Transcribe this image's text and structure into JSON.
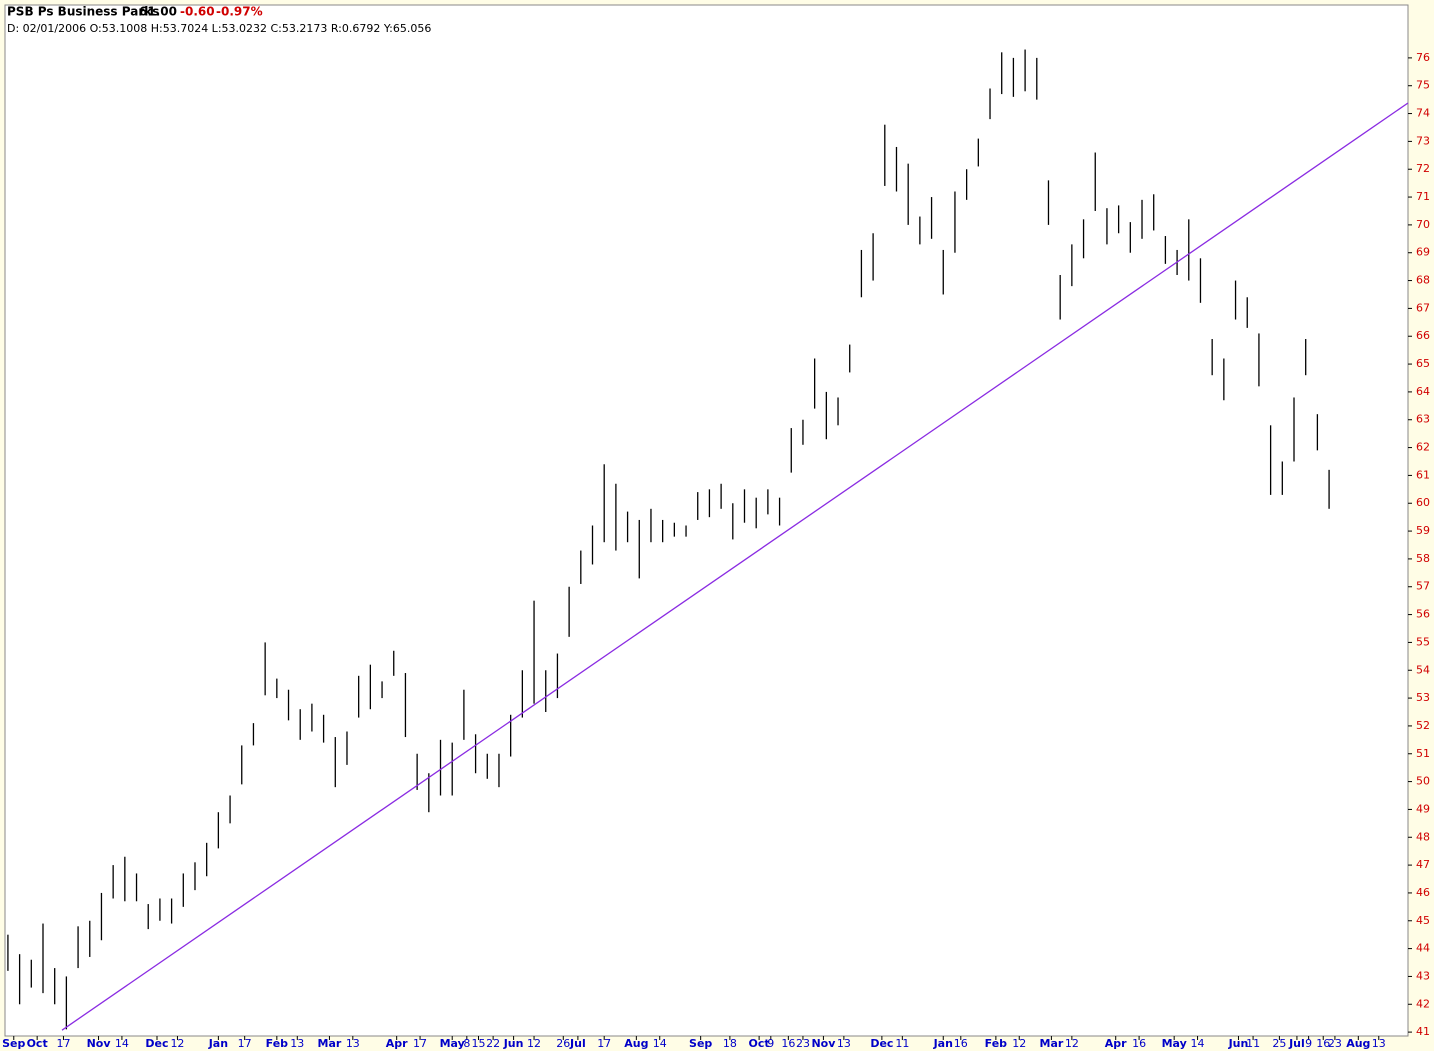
{
  "header": {
    "symbol": "PSB Ps Business Parks",
    "last": "61.00",
    "change": "-0.60",
    "change_pct": "-0.97%",
    "ohlc_line": "D: 02/01/2006 O:53.1008 H:53.7024 L:53.0232 C:53.2173 R:0.6792 Y:65.056"
  },
  "chart_data": {
    "type": "range-bar",
    "color": "#000000",
    "x": [
      1,
      5,
      9,
      13,
      17,
      21,
      25,
      29,
      33,
      37,
      41,
      45,
      49,
      53,
      57,
      61,
      65,
      69,
      73,
      77,
      81,
      85,
      89,
      93,
      97,
      101,
      105,
      109,
      113,
      117,
      121,
      125,
      129,
      133,
      137,
      141,
      145,
      149,
      153,
      157,
      161,
      165,
      169,
      173,
      177,
      181,
      185,
      189,
      193,
      197,
      201,
      205,
      209,
      213,
      217,
      221,
      225,
      229,
      233,
      237,
      241,
      245,
      249,
      253,
      257,
      261,
      265,
      269,
      273,
      277,
      281,
      285,
      289,
      293,
      297,
      301,
      305,
      309,
      313,
      317,
      321,
      325,
      329,
      333,
      337,
      341,
      345,
      349,
      353,
      357,
      361,
      365,
      369,
      373,
      377,
      381,
      385,
      389,
      393,
      397,
      401,
      405,
      409,
      413,
      417,
      421,
      425,
      429,
      433,
      437,
      441,
      445,
      449,
      453
    ],
    "low": [
      43.2,
      42.0,
      42.6,
      42.4,
      42.0,
      41.1,
      43.3,
      43.7,
      44.3,
      45.8,
      45.7,
      45.7,
      44.7,
      45.0,
      44.9,
      45.5,
      46.1,
      46.6,
      47.6,
      48.5,
      49.9,
      51.3,
      53.1,
      53.0,
      52.2,
      51.5,
      51.8,
      51.4,
      49.8,
      50.6,
      52.3,
      52.6,
      53.0,
      53.8,
      51.6,
      49.7,
      48.9,
      49.5,
      49.5,
      51.5,
      50.3,
      50.1,
      49.8,
      50.9,
      52.3,
      52.8,
      52.5,
      53.0,
      55.2,
      57.1,
      57.8,
      58.6,
      58.3,
      58.6,
      57.3,
      58.6,
      58.6,
      58.8,
      58.8,
      59.4,
      59.5,
      59.8,
      58.7,
      59.3,
      59.1,
      59.6,
      59.2,
      61.1,
      62.1,
      63.4,
      62.3,
      62.8,
      64.7,
      67.4,
      68.0,
      71.4,
      71.2,
      70.0,
      69.3,
      69.5,
      67.5,
      69.0,
      70.9,
      72.1,
      73.8,
      74.7,
      74.6,
      74.8,
      74.5,
      70.0,
      66.6,
      67.8,
      68.8,
      70.5,
      69.3,
      69.7,
      69.0,
      69.5,
      69.8,
      68.6,
      68.2,
      68.0,
      67.2,
      64.6,
      63.7,
      66.6,
      66.3,
      64.2,
      60.3,
      60.3,
      61.5,
      64.6,
      61.9,
      59.8
    ],
    "high": [
      44.5,
      43.8,
      43.6,
      44.9,
      43.3,
      43.0,
      44.8,
      45.0,
      46.0,
      47.0,
      47.3,
      46.7,
      45.6,
      45.8,
      45.8,
      46.7,
      47.1,
      47.8,
      48.9,
      49.5,
      51.3,
      52.1,
      55.0,
      53.7,
      53.3,
      52.6,
      52.8,
      52.4,
      51.6,
      51.8,
      53.8,
      54.2,
      53.6,
      54.7,
      53.9,
      51.0,
      50.3,
      51.5,
      51.4,
      53.3,
      51.7,
      51.0,
      51.0,
      52.4,
      54.0,
      56.5,
      54.0,
      54.6,
      57.0,
      58.3,
      59.2,
      61.4,
      60.7,
      59.7,
      59.4,
      59.8,
      59.4,
      59.3,
      59.2,
      60.4,
      60.5,
      60.7,
      60.0,
      60.5,
      60.2,
      60.5,
      60.2,
      62.7,
      63.0,
      65.2,
      64.0,
      63.8,
      65.7,
      69.1,
      69.7,
      73.6,
      72.8,
      72.2,
      70.3,
      71.0,
      69.1,
      71.2,
      72.0,
      73.1,
      74.9,
      76.2,
      76.0,
      76.3,
      76.0,
      71.6,
      68.2,
      69.3,
      70.2,
      72.6,
      70.6,
      70.7,
      70.1,
      70.9,
      71.1,
      69.6,
      69.1,
      70.2,
      68.8,
      65.9,
      65.2,
      68.0,
      67.4,
      66.1,
      62.8,
      61.5,
      63.8,
      65.9,
      63.2,
      61.2
    ],
    "trendline": {
      "x": [
        19.5,
        480
      ],
      "y": [
        41.07,
        74.38
      ],
      "color": "#8a2be2"
    },
    "xlim": [
      0,
      480
    ],
    "ylim": [
      40.86,
      77.9
    ],
    "yticks": [
      41,
      42,
      43,
      44,
      45,
      46,
      47,
      48,
      49,
      50,
      51,
      52,
      53,
      54,
      55,
      56,
      57,
      58,
      59,
      60,
      61,
      62,
      63,
      64,
      65,
      66,
      67,
      68,
      69,
      70,
      71,
      72,
      73,
      74,
      75,
      76
    ],
    "xticks": [
      {
        "value": 3,
        "label": "Sep"
      },
      {
        "value": 11,
        "label": "Oct"
      },
      {
        "value": 20,
        "label": "17"
      },
      {
        "value": 32,
        "label": "Nov"
      },
      {
        "value": 40,
        "label": "14"
      },
      {
        "value": 52,
        "label": "Dec"
      },
      {
        "value": 59,
        "label": "12"
      },
      {
        "value": 73,
        "label": "Jan"
      },
      {
        "value": 82,
        "label": "17"
      },
      {
        "value": 93,
        "label": "Feb"
      },
      {
        "value": 100,
        "label": "13"
      },
      {
        "value": 111,
        "label": "Mar"
      },
      {
        "value": 119,
        "label": "13"
      },
      {
        "value": 134,
        "label": "Apr"
      },
      {
        "value": 142,
        "label": "17"
      },
      {
        "value": 153,
        "label": "May"
      },
      {
        "value": 158,
        "label": "8"
      },
      {
        "value": 162,
        "label": "15"
      },
      {
        "value": 167,
        "label": "22"
      },
      {
        "value": 174,
        "label": "Jun"
      },
      {
        "value": 181,
        "label": "12"
      },
      {
        "value": 191,
        "label": "26"
      },
      {
        "value": 196,
        "label": "Jul"
      },
      {
        "value": 205,
        "label": "17"
      },
      {
        "value": 216,
        "label": "Aug"
      },
      {
        "value": 224,
        "label": "14"
      },
      {
        "value": 238,
        "label": "Sep"
      },
      {
        "value": 248,
        "label": "18"
      },
      {
        "value": 258,
        "label": "Oct"
      },
      {
        "value": 262,
        "label": "9"
      },
      {
        "value": 268,
        "label": "16"
      },
      {
        "value": 273,
        "label": "23"
      },
      {
        "value": 280,
        "label": "Nov"
      },
      {
        "value": 287,
        "label": "13"
      },
      {
        "value": 300,
        "label": "Dec"
      },
      {
        "value": 307,
        "label": "11"
      },
      {
        "value": 321,
        "label": "Jan"
      },
      {
        "value": 327,
        "label": "16"
      },
      {
        "value": 339,
        "label": "Feb"
      },
      {
        "value": 347,
        "label": "12"
      },
      {
        "value": 358,
        "label": "Mar"
      },
      {
        "value": 365,
        "label": "12"
      },
      {
        "value": 380,
        "label": "Apr"
      },
      {
        "value": 388,
        "label": "16"
      },
      {
        "value": 400,
        "label": "May"
      },
      {
        "value": 408,
        "label": "14"
      },
      {
        "value": 422,
        "label": "Jun"
      },
      {
        "value": 427,
        "label": "11"
      },
      {
        "value": 436,
        "label": "25"
      },
      {
        "value": 442,
        "label": "Jul"
      },
      {
        "value": 446,
        "label": "9"
      },
      {
        "value": 451,
        "label": "16"
      },
      {
        "value": 455,
        "label": "23"
      },
      {
        "value": 463,
        "label": "Aug"
      },
      {
        "value": 470,
        "label": "13"
      }
    ]
  }
}
